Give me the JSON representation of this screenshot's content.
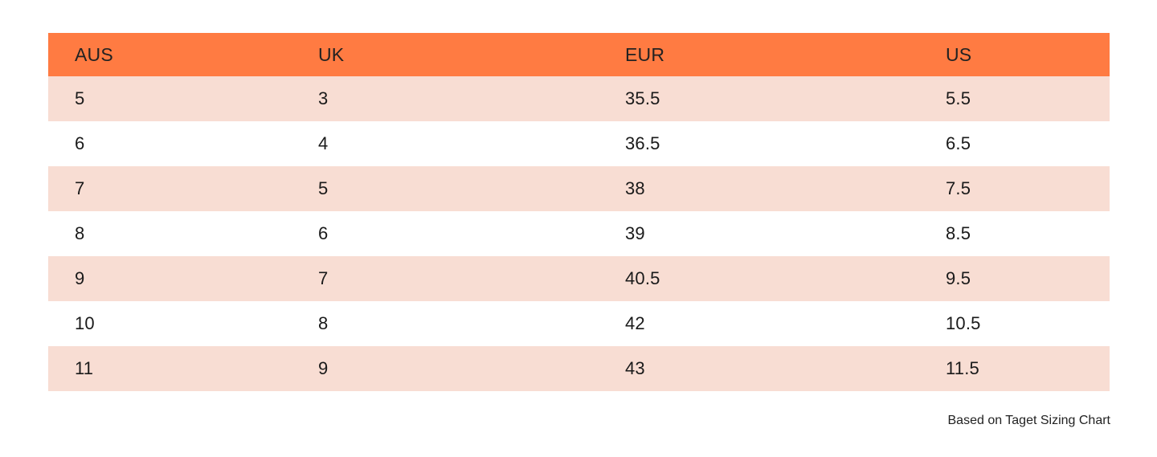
{
  "table": {
    "headers": {
      "aus": "AUS",
      "uk": "UK",
      "eur": "EUR",
      "us": "US"
    },
    "rows": [
      {
        "aus": "5",
        "uk": "3",
        "eur": "35.5",
        "us": "5.5"
      },
      {
        "aus": "6",
        "uk": "4",
        "eur": "36.5",
        "us": "6.5"
      },
      {
        "aus": "7",
        "uk": "5",
        "eur": "38",
        "us": "7.5"
      },
      {
        "aus": "8",
        "uk": "6",
        "eur": "39",
        "us": "8.5"
      },
      {
        "aus": "9",
        "uk": "7",
        "eur": "40.5",
        "us": "9.5"
      },
      {
        "aus": "10",
        "uk": "8",
        "eur": "42",
        "us": "10.5"
      },
      {
        "aus": "11",
        "uk": "9",
        "eur": "43",
        "us": "11.5"
      }
    ]
  },
  "footnote": "Based on Taget Sizing Chart",
  "colors": {
    "header": "#ff7b42",
    "row_shaded": "#f8ddd3",
    "row_plain": "#ffffff"
  }
}
